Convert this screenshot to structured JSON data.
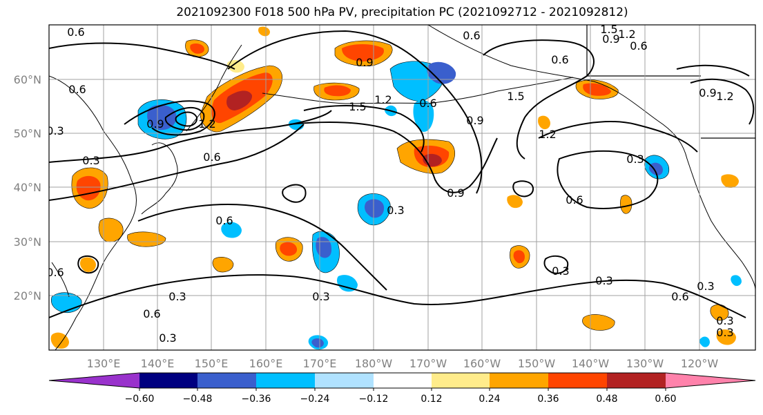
{
  "title": "2021092300 F018 500 hPa PV, precipitation PC (2021092712 - 2021092812)",
  "map": {
    "lat_labels": [
      "60°N",
      "50°N",
      "40°N",
      "30°N",
      "20°N"
    ],
    "lon_labels": [
      "130°E",
      "140°E",
      "150°E",
      "160°E",
      "170°E",
      "180°W",
      "170°W",
      "160°W",
      "150°W",
      "140°W",
      "130°W",
      "120°W"
    ],
    "contour_labels": [
      "0.6",
      "0.6",
      "0.3",
      "0.3",
      "0.9",
      "1.2",
      "0.6",
      "0.9",
      "1.5",
      "0.6",
      "0.9",
      "0.6",
      "1.2",
      "1.5",
      "0.6",
      "0.9",
      "1.2",
      "0.6",
      "0.3",
      "0.6",
      "0.3",
      "0.3",
      "0.6",
      "0.3",
      "0.3",
      "0.3",
      "0.6",
      "0.3",
      "0.3",
      "0.3",
      "0.6",
      "0.3",
      "1.5",
      "1.2",
      "0.9",
      "0.6",
      "0.9",
      "1.2"
    ],
    "colors": {
      "land_lines": "#000000",
      "grid": "#a0a0a0",
      "pv_contour": "#000000"
    }
  },
  "colorbar": {
    "ticks": [
      "−0.60",
      "−0.48",
      "−0.36",
      "−0.24",
      "−0.12",
      "0.12",
      "0.24",
      "0.36",
      "0.48",
      "0.60"
    ],
    "bins": [
      {
        "color": "#9932CC"
      },
      {
        "color": "#000080"
      },
      {
        "color": "#3A5FCD"
      },
      {
        "color": "#00BFFF"
      },
      {
        "color": "#B0E2FF"
      },
      {
        "color": "#FFFFFF"
      },
      {
        "color": "#FFEC8B"
      },
      {
        "color": "#FFA500"
      },
      {
        "color": "#FF4500"
      },
      {
        "color": "#B22222"
      },
      {
        "color": "#FF82AB"
      }
    ]
  }
}
